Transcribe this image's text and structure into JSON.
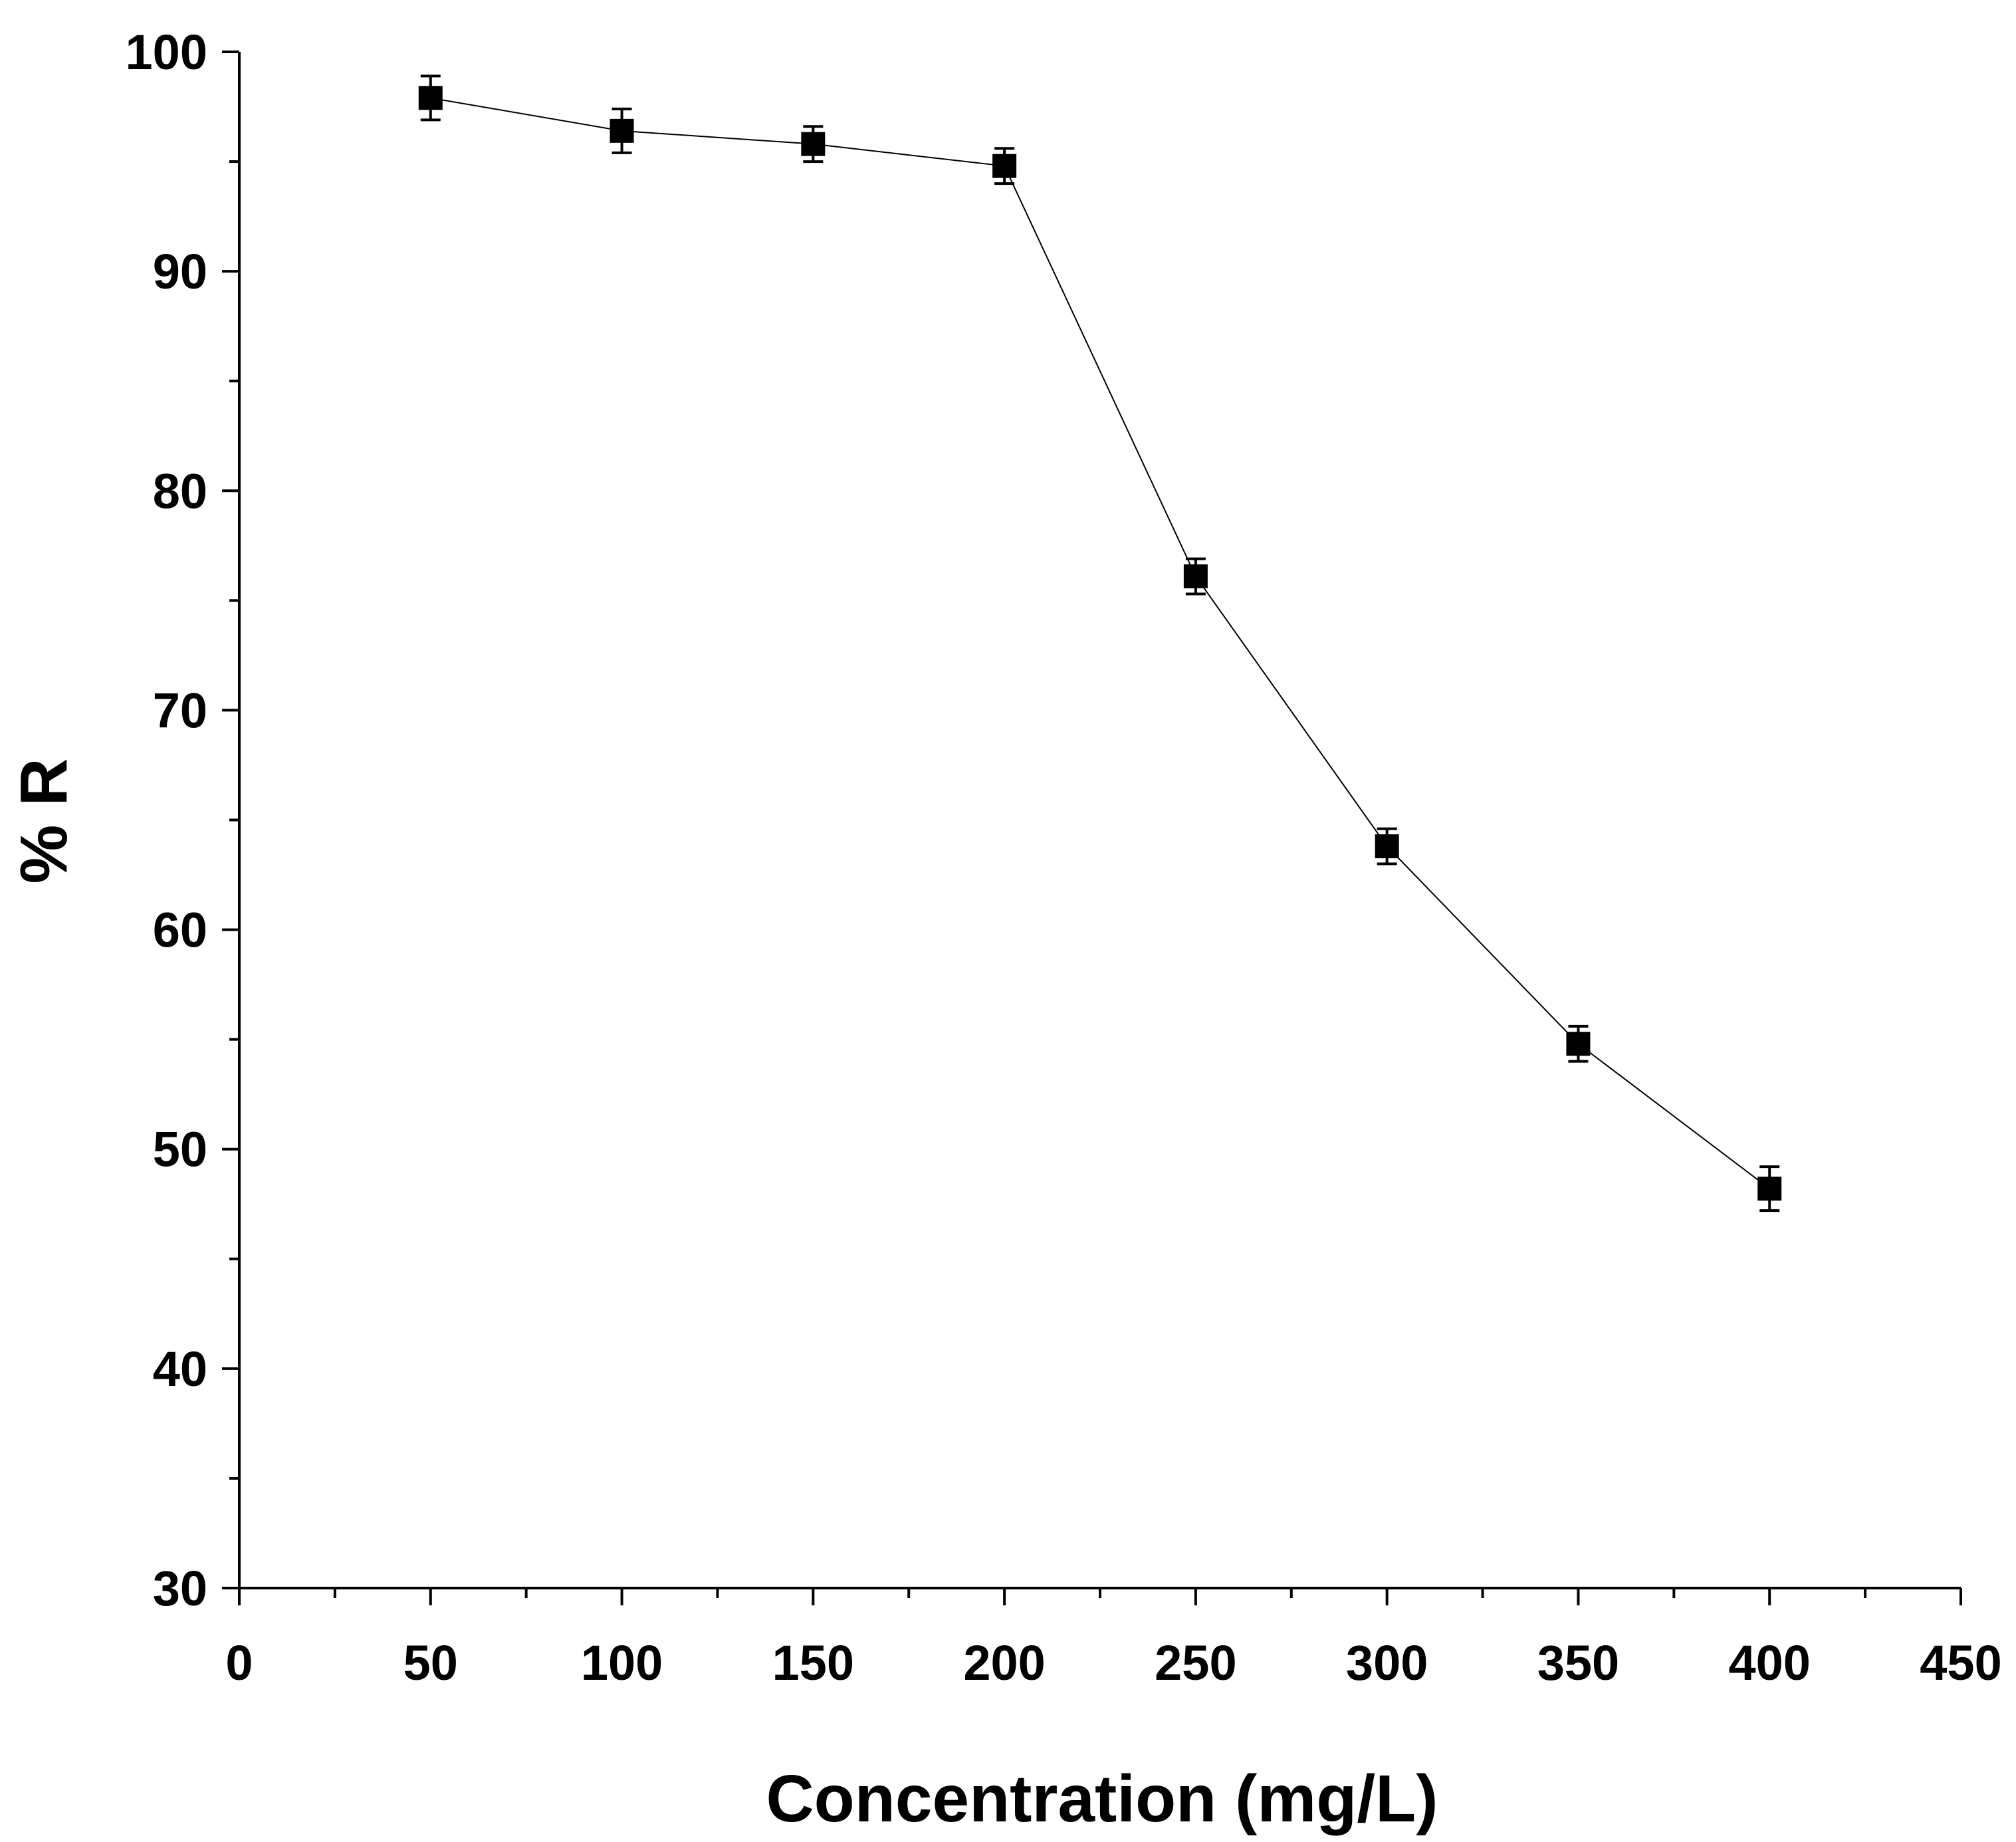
{
  "chart_data": {
    "type": "line",
    "title": "",
    "xlabel": "Concentration (mg/L)",
    "ylabel": "% R",
    "xlim": [
      0,
      450
    ],
    "ylim": [
      30,
      100
    ],
    "x_major_ticks": [
      0,
      50,
      100,
      150,
      200,
      250,
      300,
      350,
      400,
      450
    ],
    "x_tick_labels": [
      "0",
      "50",
      "100",
      "150",
      "200",
      "250",
      "300",
      "350",
      "400",
      "450"
    ],
    "x_minor_ticks": [
      25,
      75,
      125,
      175,
      225,
      275,
      325,
      375,
      425
    ],
    "y_major_ticks": [
      30,
      40,
      50,
      60,
      70,
      80,
      90,
      100
    ],
    "y_tick_labels": [
      "30",
      "40",
      "50",
      "60",
      "70",
      "80",
      "90",
      "100"
    ],
    "y_minor_ticks": [
      35,
      45,
      55,
      65,
      75,
      85,
      95
    ],
    "grid": false,
    "legend": "none",
    "series": [
      {
        "name": "% R",
        "marker": "square",
        "color": "#000000",
        "x": [
          50,
          100,
          150,
          200,
          250,
          300,
          350,
          400
        ],
        "y": [
          97.9,
          96.4,
          95.8,
          94.8,
          76.1,
          63.8,
          54.8,
          48.2
        ],
        "error": [
          1.0,
          1.0,
          0.8,
          0.8,
          0.8,
          0.8,
          0.8,
          1.0
        ]
      }
    ],
    "colors": {
      "axis": "#000000",
      "line": "#000000",
      "marker": "#000000",
      "background": "#ffffff"
    }
  }
}
